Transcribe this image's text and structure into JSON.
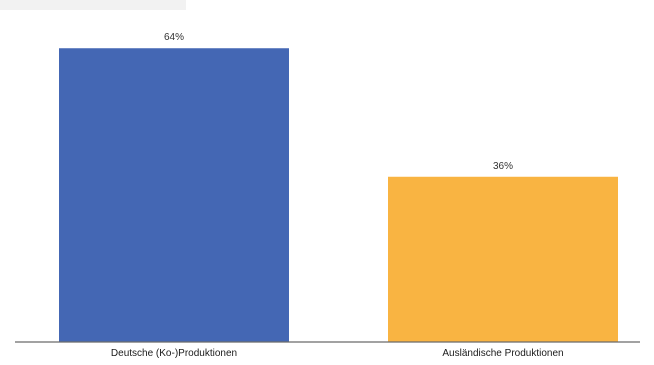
{
  "chart_data": {
    "type": "bar",
    "categories": [
      "Deutsche (Ko-)Produktionen",
      "Ausländische Produktionen"
    ],
    "values": [
      64,
      36
    ],
    "value_labels": [
      "64%",
      "36%"
    ],
    "colors": [
      "#4467b4",
      "#f9b442"
    ],
    "ylim": [
      0,
      70
    ],
    "grid": false,
    "legend": "none"
  }
}
